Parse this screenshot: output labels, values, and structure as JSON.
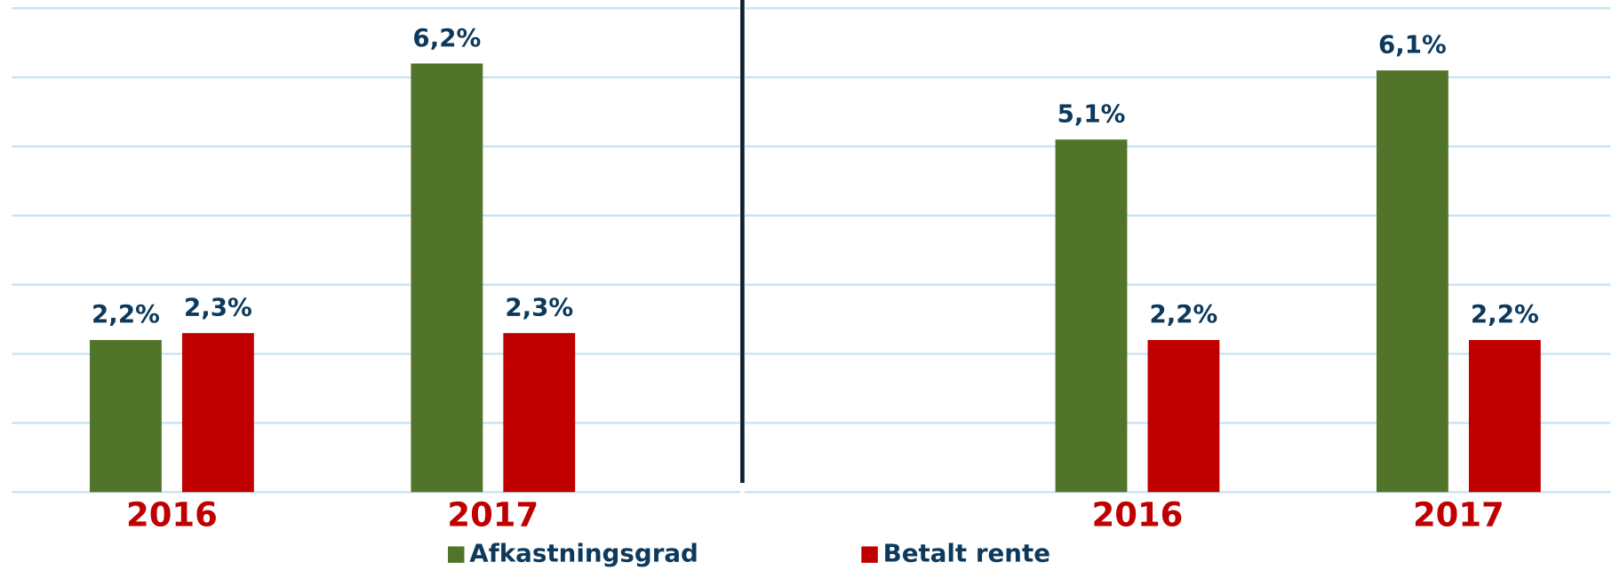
{
  "chart_data": [
    {
      "type": "bar",
      "categories": [
        "2016",
        "2017"
      ],
      "series": [
        {
          "name": "Afkastningsgrad",
          "color": "#52742a",
          "values": [
            2.2,
            6.2
          ],
          "value_labels": [
            "2,2%",
            "6,2%"
          ]
        },
        {
          "name": "Betalt rente",
          "color": "#c00000",
          "values": [
            2.3,
            2.3
          ],
          "value_labels": [
            "2,3%",
            "2,3%"
          ]
        }
      ],
      "ylim": [
        0,
        7
      ],
      "yticks": [
        0,
        1,
        2,
        3,
        4,
        5,
        6,
        7
      ],
      "grid": true,
      "legend": "bottom"
    },
    {
      "type": "bar",
      "categories": [
        "2016",
        "2017"
      ],
      "series": [
        {
          "color": "#52742a",
          "values": [
            5.1,
            6.1
          ],
          "value_labels": [
            "5,1%",
            "6,1%"
          ]
        },
        {
          "color": "#c00000",
          "values": [
            2.2,
            2.2
          ],
          "value_labels": [
            "2,2%",
            "2,2%"
          ]
        }
      ],
      "ylim": [
        0,
        7
      ],
      "yticks": [
        0,
        1,
        2,
        3,
        4,
        5,
        6,
        7
      ],
      "grid": true
    }
  ]
}
